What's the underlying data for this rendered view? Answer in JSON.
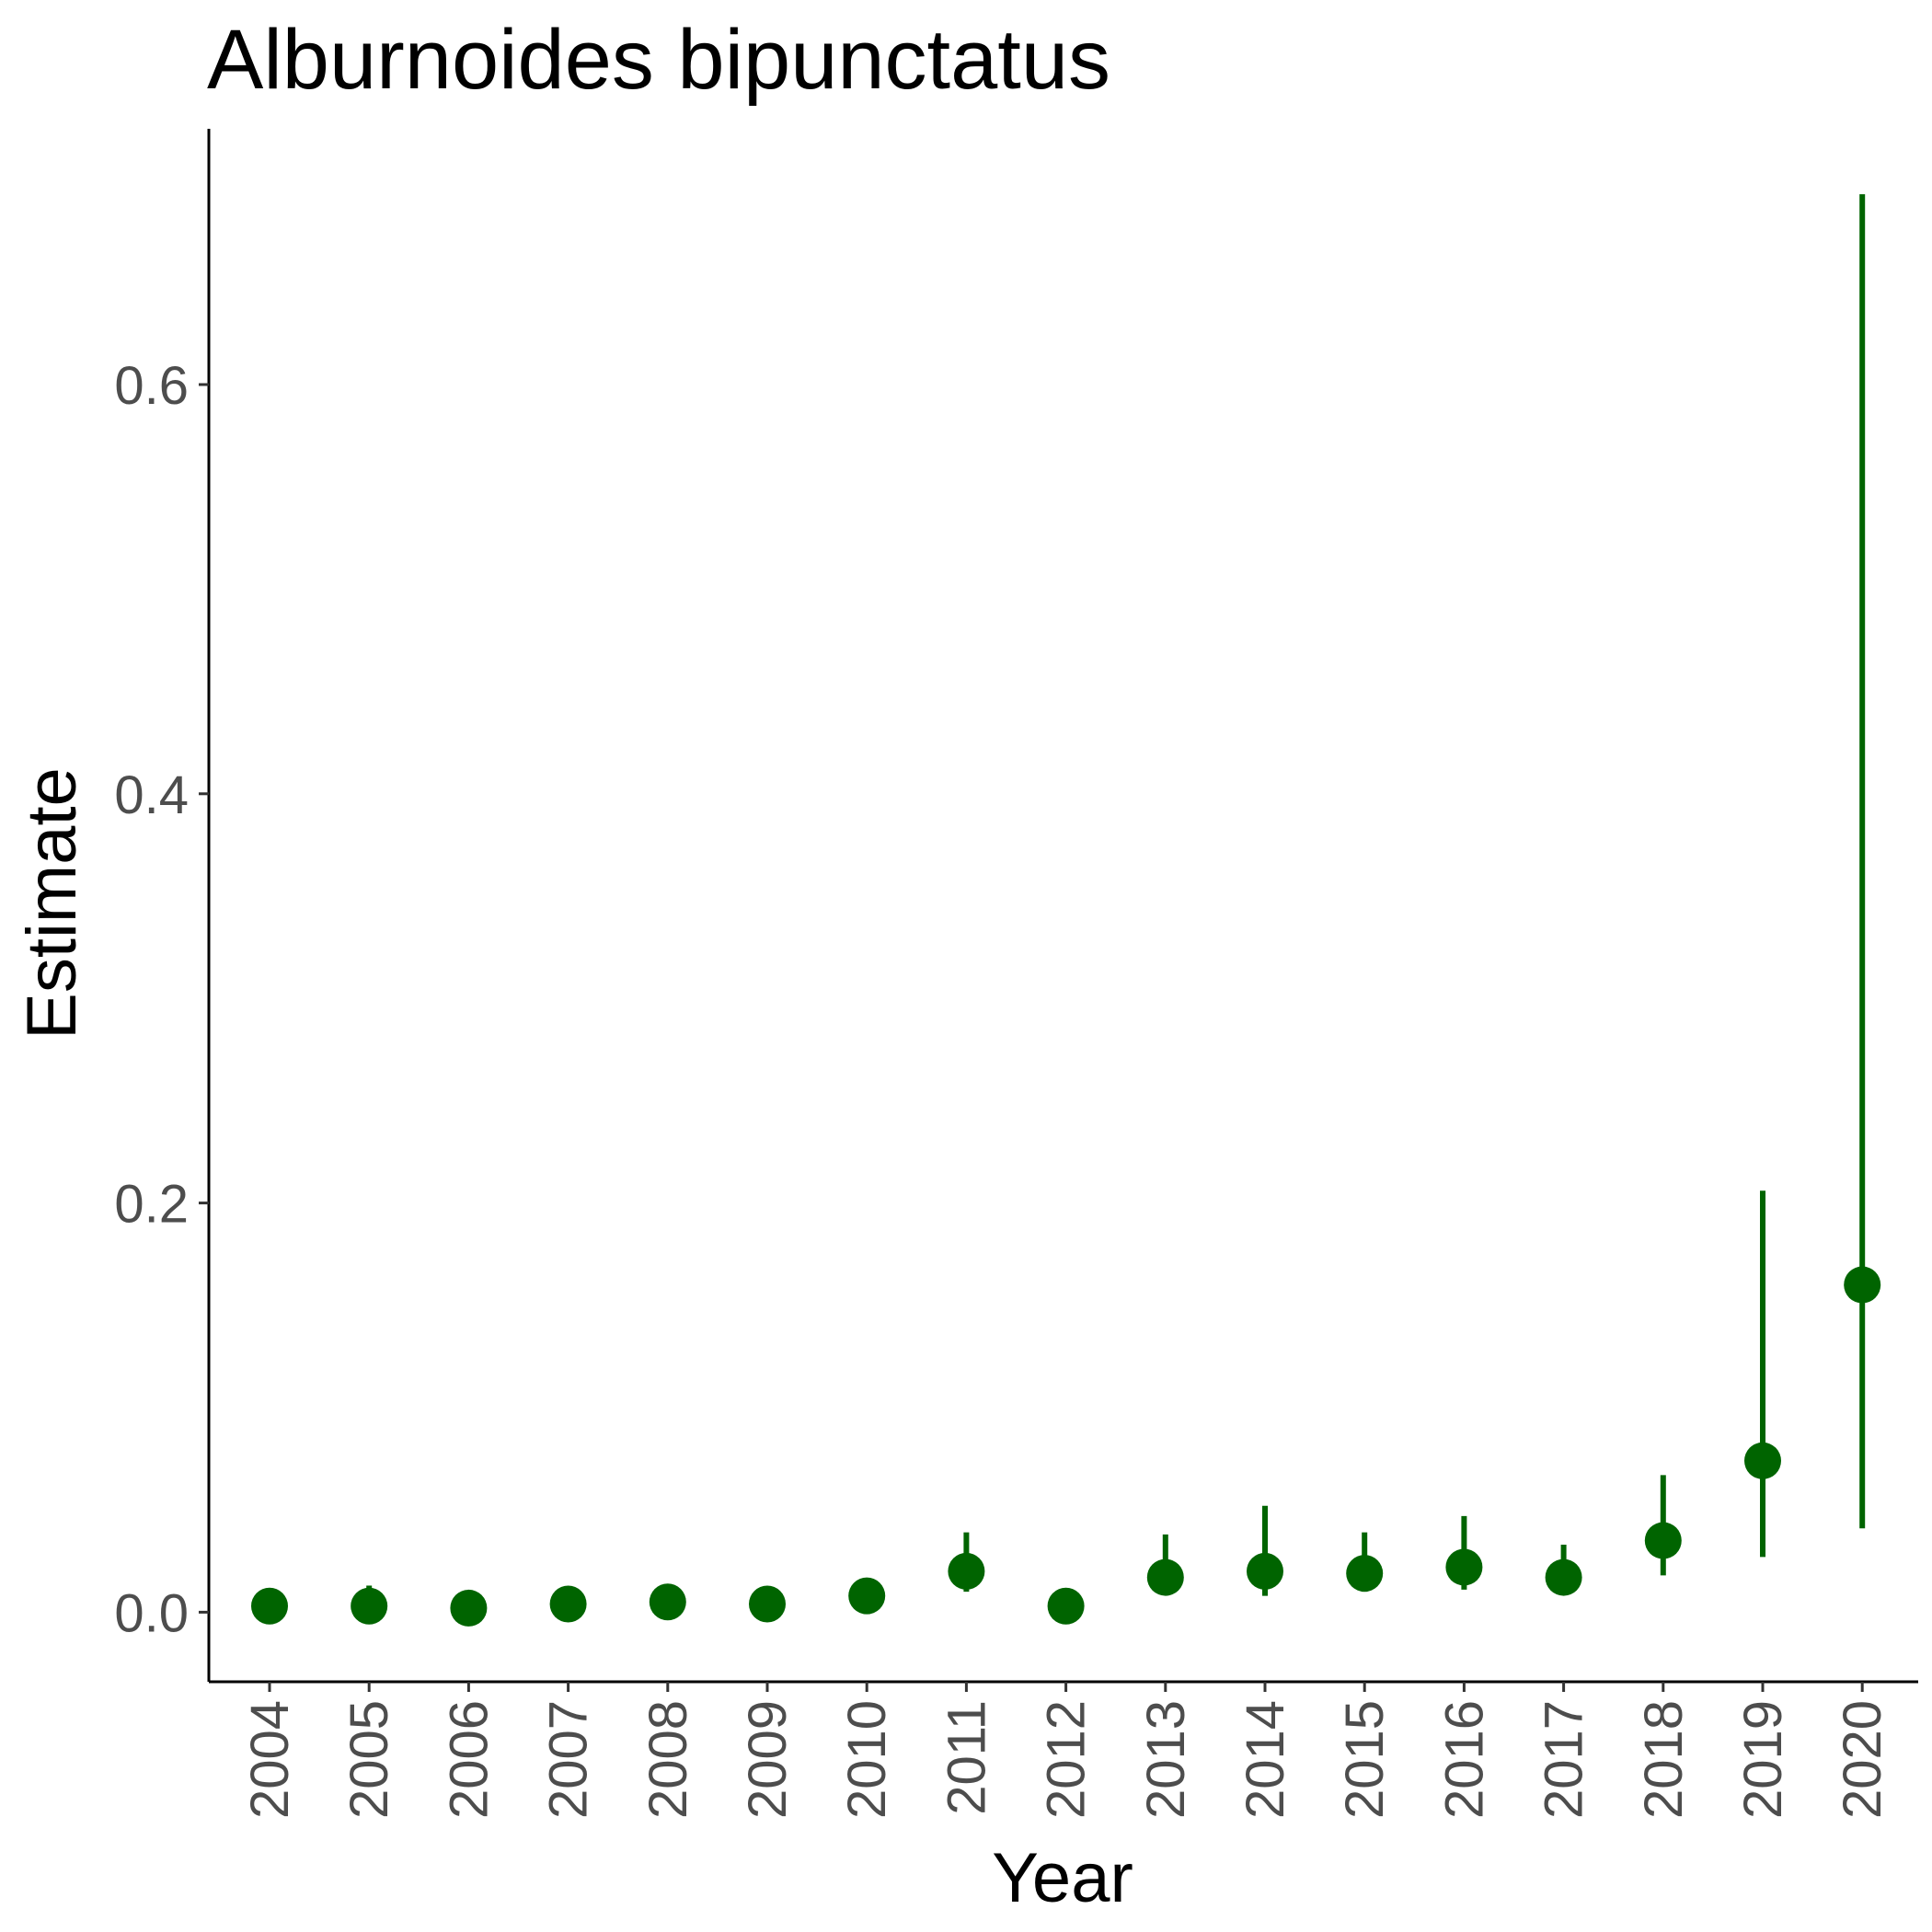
{
  "chart_data": {
    "type": "scatter",
    "title": "Alburnoides bipunctatus",
    "xlabel": "Year",
    "ylabel": "Estimate",
    "ylim": [
      -0.034,
      0.725
    ],
    "y_ticks": [
      "0.0",
      "0.2",
      "0.4",
      "0.6"
    ],
    "grid": false,
    "legend": "none",
    "color": "#006400",
    "series": [
      {
        "x": [
          "2004",
          "2005",
          "2006",
          "2007",
          "2008",
          "2009",
          "2010",
          "2011",
          "2012",
          "2013",
          "2014",
          "2015",
          "2016",
          "2017",
          "2018",
          "2019",
          "2020"
        ],
        "y": [
          0.003,
          0.003,
          0.002,
          0.004,
          0.005,
          0.004,
          0.008,
          0.02,
          0.003,
          0.017,
          0.02,
          0.019,
          0.022,
          0.017,
          0.035,
          0.074,
          0.16
        ],
        "lower": [
          0.0015,
          0.0012,
          0.0008,
          0.002,
          0.0025,
          0.002,
          0.004,
          0.01,
          0.0012,
          0.009,
          0.008,
          0.01,
          0.011,
          0.01,
          0.018,
          0.027,
          0.041
        ],
        "upper": [
          0.006,
          0.013,
          0.004,
          0.008,
          0.009,
          0.007,
          0.013,
          0.039,
          0.005,
          0.038,
          0.052,
          0.039,
          0.047,
          0.033,
          0.067,
          0.206,
          0.693
        ]
      }
    ]
  }
}
